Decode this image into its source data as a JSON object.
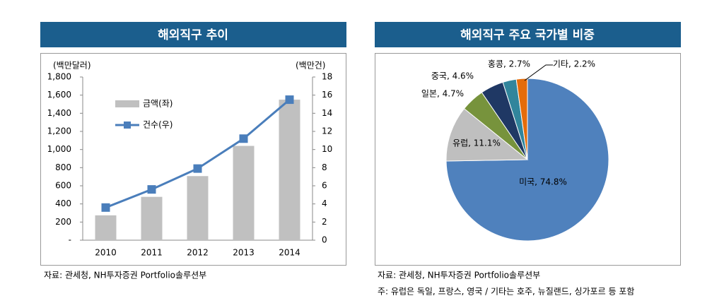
{
  "chart_data": [
    {
      "type": "bar",
      "title": "해외직구 추이",
      "source": "자료: 관세청, NH투자증권 Portfolio솔루션부",
      "ylabel": "(백만달러)",
      "y2label": "(백만건)",
      "categories": [
        "2010",
        "2011",
        "2012",
        "2013",
        "2014"
      ],
      "series": [
        {
          "name": "금액(좌)",
          "type": "bar",
          "color": "#c0c0c0",
          "values": [
            274,
            478,
            707,
            1040,
            1550
          ]
        },
        {
          "name": "건수(우)",
          "type": "line",
          "axis": "y2",
          "color": "#4a7ebb",
          "values": [
            3.6,
            5.6,
            7.9,
            11.2,
            15.5
          ]
        }
      ],
      "ylim": [
        0,
        1800
      ],
      "yticks": [
        {
          "value": 0,
          "label": "-"
        },
        200,
        400,
        600,
        800,
        {
          "value": 1000,
          "label": "1,000"
        },
        {
          "value": 1200,
          "label": "1,200"
        },
        {
          "value": 1400,
          "label": "1,400"
        },
        {
          "value": 1600,
          "label": "1,600"
        },
        {
          "value": 1800,
          "label": "1,800"
        }
      ],
      "y2lim": [
        0,
        18
      ],
      "y2ticks": [
        0,
        2,
        4,
        6,
        8,
        10,
        12,
        14,
        16,
        18
      ]
    },
    {
      "type": "pie",
      "title": "해외직구 주요 국가별 비중",
      "source": "자료: 관세청, NH투자증권 Portfolio솔루션부",
      "note": "주: 유럽은 독일, 프랑스, 영국 / 기타는 호주, 뉴질랜드, 싱가포르 등 포함",
      "categories": [
        "미국",
        "유럽",
        "일본",
        "중국",
        "홍콩",
        "기타"
      ],
      "values": [
        74.8,
        11.1,
        4.7,
        4.6,
        2.7,
        2.2
      ],
      "value_labels": [
        "미국, 74.8%",
        "유럽, 11.1%",
        "일본, 4.7%",
        "중국, 4.6%",
        "홍콩, 2.7%",
        "기타, 2.2%"
      ],
      "colors": [
        "#4f81bd",
        "#bfbfbf",
        "#77933c",
        "#1f3864",
        "#31859c",
        "#e46c0a"
      ]
    }
  ]
}
